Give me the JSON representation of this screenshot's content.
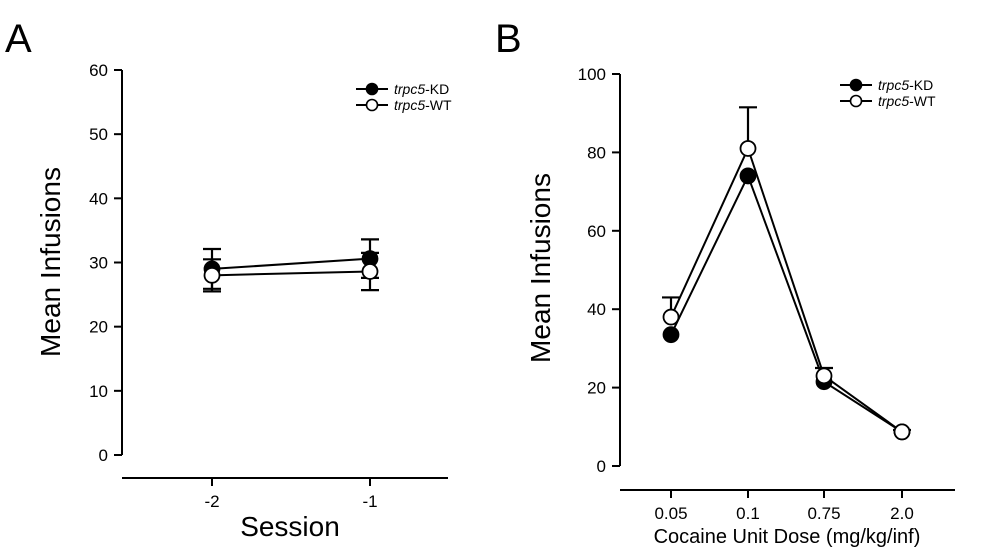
{
  "panels": [
    {
      "label": "A"
    },
    {
      "label": "B"
    }
  ],
  "chart_data": [
    {
      "type": "line",
      "panel": "A",
      "xlabel": "Session",
      "ylabel": "Mean Infusions",
      "categories": [
        "-2",
        "-1"
      ],
      "ylim": [
        0,
        60
      ],
      "yticks": [
        "0",
        "10",
        "20",
        "30",
        "40",
        "50",
        "60"
      ],
      "grid": false,
      "legend_position": "top-right",
      "series": [
        {
          "name_italic": "trpc5",
          "name_suffix": "-KD",
          "marker": "filled",
          "values": [
            29.0,
            30.6
          ],
          "err_plus": [
            3.1,
            3.0
          ],
          "err_minus": [
            3.1,
            3.0
          ]
        },
        {
          "name_italic": "trpc5",
          "name_suffix": "-WT",
          "marker": "open",
          "values": [
            28.0,
            28.6
          ],
          "err_plus": [
            2.5,
            2.9
          ],
          "err_minus": [
            2.5,
            2.9
          ]
        }
      ]
    },
    {
      "type": "line",
      "panel": "B",
      "xlabel": "Cocaine Unit Dose (mg/kg/inf)",
      "ylabel": "Mean Infusions",
      "categories": [
        "0.05",
        "0.1",
        "0.75",
        "2.0"
      ],
      "ylim": [
        0,
        100
      ],
      "yticks": [
        "0",
        "20",
        "40",
        "60",
        "80",
        "100"
      ],
      "grid": false,
      "legend_position": "top-right",
      "series": [
        {
          "name_italic": "trpc5",
          "name_suffix": "-KD",
          "marker": "filled",
          "values": [
            33.5,
            74.0,
            21.5,
            8.7
          ],
          "err_plus": [
            0,
            0,
            0,
            0
          ],
          "err_minus": [
            0,
            0,
            0,
            0
          ]
        },
        {
          "name_italic": "trpc5",
          "name_suffix": "-WT",
          "marker": "open",
          "values": [
            38.0,
            81.0,
            23.0,
            8.7
          ],
          "err_plus": [
            5.0,
            10.5,
            2.0,
            0.5
          ],
          "err_minus": [
            0,
            0,
            0,
            0
          ]
        }
      ]
    }
  ]
}
